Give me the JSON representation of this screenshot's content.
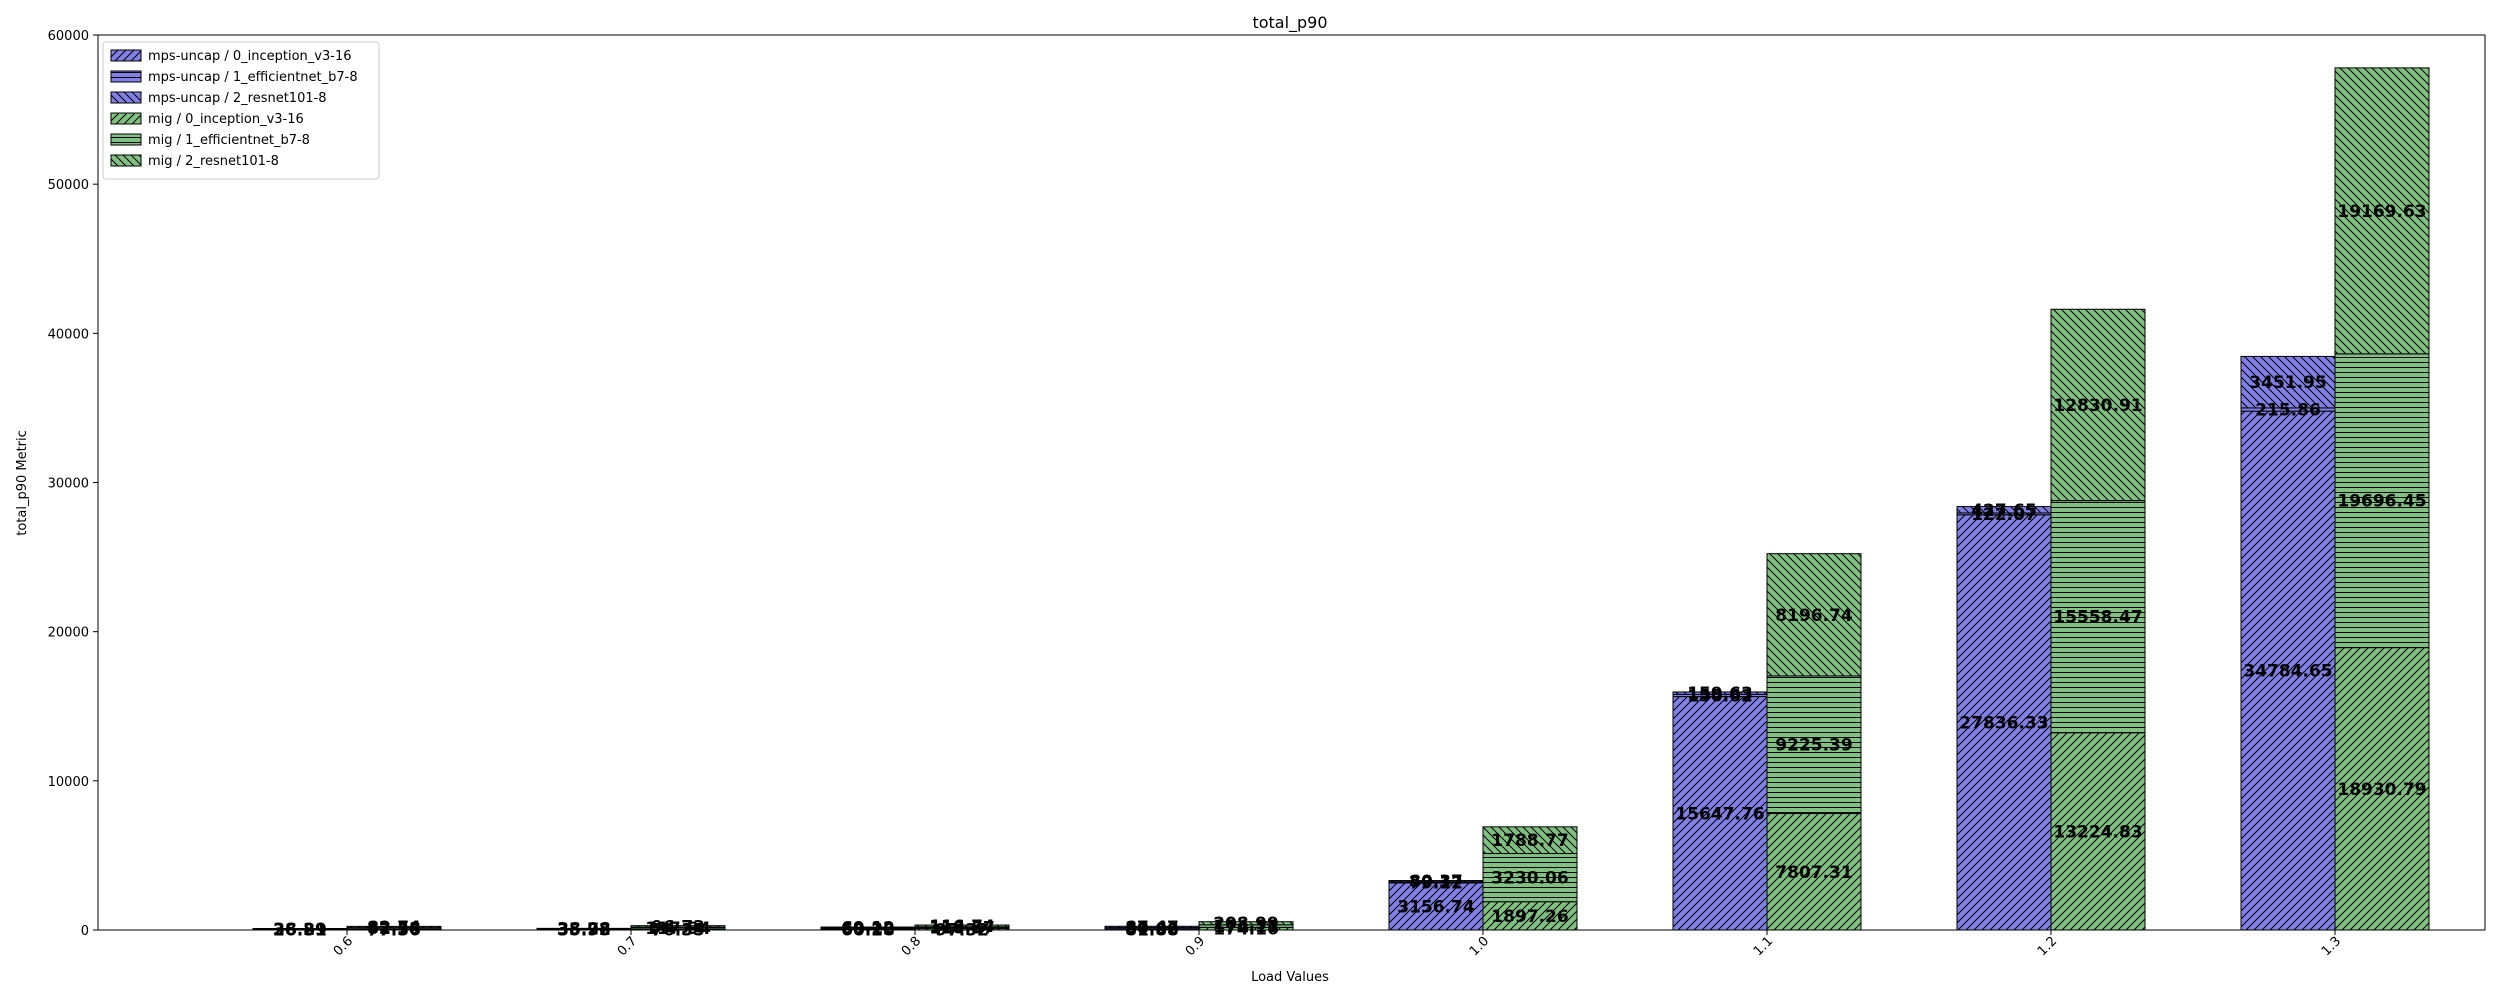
{
  "chart_data": {
    "type": "bar",
    "title": "total_p90",
    "xlabel": "Load Values",
    "ylabel": "total_p90 Metric",
    "ylim": [
      0,
      60000
    ],
    "yticks": [
      0,
      10000,
      20000,
      30000,
      40000,
      50000,
      60000
    ],
    "grid": false,
    "legend_position": "top-left",
    "categories": [
      "0.6",
      "0.7",
      "0.8",
      "0.9",
      "1.0",
      "1.1",
      "1.2",
      "1.3"
    ],
    "groups": [
      {
        "name": "mps-uncap",
        "color": "#8080e6",
        "stack": [
          {
            "name": "mps-uncap / 0_inception_v3-16",
            "hatch": "diag",
            "values": [
              36.89,
              35.95,
              60.28,
              81.88,
              3156.74,
              15647.76,
              27836.33,
              34784.65
            ]
          },
          {
            "name": "mps-uncap / 1_efficientnet_b7-8",
            "hatch": "horiz",
            "values": [
              26.31,
              35.72,
              69.22,
              80.66,
              79.12,
              150.62,
              122.07,
              215.86
            ]
          },
          {
            "name": "mps-uncap / 2_resnet101-8",
            "hatch": "anti",
            "values": [
              38.29,
              38.28,
              69.12,
              87.47,
              80.37,
              159.63,
              427.65,
              3451.95
            ]
          }
        ]
      },
      {
        "name": "mig",
        "color": "#80c080",
        "stack": [
          {
            "name": "mig / 0_inception_v3-16",
            "hatch": "diag",
            "values": [
              77.36,
              76.35,
              97.32,
              174.16,
              1897.26,
              7807.31,
              13224.83,
              18930.79
            ]
          },
          {
            "name": "mig / 1_efficientnet_b7-8",
            "hatch": "horiz",
            "values": [
              82.58,
              117.94,
              118.57,
              174.11,
              3230.06,
              9225.39,
              15558.47,
              19696.45
            ]
          },
          {
            "name": "mig / 2_resnet101-8",
            "hatch": "anti",
            "values": [
              82.74,
              96.73,
              116.74,
              208.99,
              1788.77,
              8196.74,
              12830.91,
              19169.63
            ]
          }
        ]
      }
    ]
  }
}
